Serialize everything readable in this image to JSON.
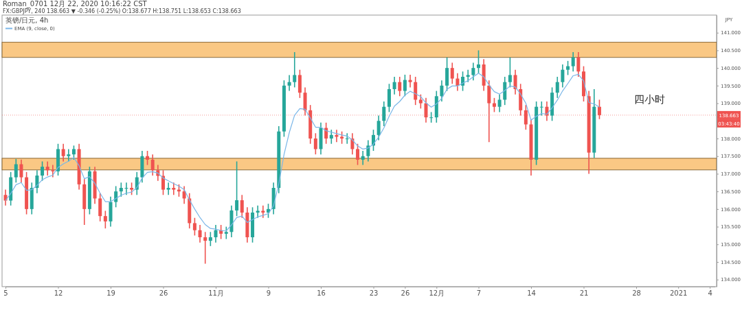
{
  "chart_data": {
    "type": "candlestick",
    "title": "Roman_0701 12月 22, 2020 10:16:22 CST",
    "subtitle": "FX:GBPJPY, 240 138.663 ▼ -0.346 (-0.25%) O:138.677 H:138.751 L:138.653 C:138.663",
    "legend_title": "英镑/日元, 4h",
    "legend": "top left",
    "ylabel": "JPY",
    "categories": [
      "5",
      null,
      null,
      null,
      null,
      null,
      null,
      null,
      null,
      null,
      "12",
      null,
      null,
      null,
      null,
      null,
      null,
      null,
      null,
      null,
      "19",
      null,
      null,
      null,
      null,
      null,
      null,
      null,
      null,
      null,
      "26",
      null,
      null,
      null,
      null,
      null,
      null,
      null,
      null,
      null,
      "11月",
      null,
      null,
      null,
      null,
      null,
      null,
      null,
      null,
      null,
      "9",
      null,
      null,
      null,
      null,
      null,
      null,
      null,
      null,
      null,
      "16",
      null,
      null,
      null,
      null,
      null,
      null,
      null,
      null,
      null,
      "23",
      null,
      null,
      null,
      null,
      null,
      "26",
      null,
      null,
      null,
      null,
      null,
      "12月",
      null,
      null,
      null,
      null,
      null,
      null,
      null,
      "7",
      null,
      null,
      null,
      null,
      null,
      null,
      null,
      null,
      null,
      "14",
      null,
      null,
      null,
      null,
      null,
      null,
      null,
      null,
      null,
      "21",
      null,
      null,
      null,
      null,
      null,
      null,
      null,
      null,
      null,
      "28",
      null,
      null,
      null,
      null,
      null,
      null,
      null,
      "2021",
      null,
      null,
      null,
      null,
      null,
      "4",
      null
    ],
    "ohlc": [
      [
        136.4,
        136.55,
        136.1,
        136.24
      ],
      [
        136.24,
        137.05,
        136.1,
        136.9
      ],
      [
        136.9,
        137.42,
        136.75,
        137.27
      ],
      [
        137.27,
        137.4,
        136.75,
        136.9
      ],
      [
        136.9,
        137.05,
        135.85,
        136.0
      ],
      [
        136.0,
        136.75,
        135.85,
        136.6
      ],
      [
        136.6,
        137.1,
        136.45,
        136.95
      ],
      [
        136.95,
        137.35,
        136.8,
        137.2
      ],
      [
        137.2,
        137.35,
        136.95,
        137.1
      ],
      [
        137.1,
        137.25,
        136.9,
        137.07
      ],
      [
        137.07,
        137.85,
        136.95,
        137.7
      ],
      [
        137.7,
        137.85,
        137.35,
        137.5
      ],
      [
        137.5,
        137.7,
        137.35,
        137.55
      ],
      [
        137.55,
        137.8,
        137.4,
        137.7
      ],
      [
        137.7,
        137.85,
        136.55,
        136.7
      ],
      [
        136.7,
        136.85,
        135.55,
        136.0
      ],
      [
        136.0,
        137.2,
        135.85,
        137.07
      ],
      [
        137.07,
        137.2,
        136.15,
        136.3
      ],
      [
        136.3,
        136.45,
        135.65,
        135.8
      ],
      [
        135.8,
        135.95,
        135.45,
        135.65
      ],
      [
        135.65,
        136.35,
        135.5,
        136.2
      ],
      [
        136.2,
        136.65,
        136.05,
        136.5
      ],
      [
        136.5,
        136.75,
        136.35,
        136.6
      ],
      [
        136.6,
        136.75,
        136.4,
        136.6
      ],
      [
        136.6,
        136.75,
        136.4,
        136.55
      ],
      [
        136.55,
        137.05,
        136.4,
        136.9
      ],
      [
        136.9,
        137.65,
        136.75,
        137.5
      ],
      [
        137.5,
        137.65,
        137.25,
        137.4
      ],
      [
        137.4,
        137.55,
        136.95,
        137.1
      ],
      [
        137.1,
        137.25,
        136.8,
        136.94
      ],
      [
        136.94,
        137.1,
        136.4,
        136.55
      ],
      [
        136.55,
        136.75,
        136.4,
        136.6
      ],
      [
        136.6,
        136.75,
        136.4,
        136.55
      ],
      [
        136.55,
        136.7,
        136.35,
        136.5
      ],
      [
        136.5,
        136.65,
        136.15,
        136.3
      ],
      [
        136.3,
        136.45,
        135.45,
        135.6
      ],
      [
        135.6,
        135.75,
        135.25,
        135.4
      ],
      [
        135.4,
        135.55,
        135.05,
        135.2
      ],
      [
        135.2,
        135.35,
        134.45,
        135.1
      ],
      [
        135.1,
        135.35,
        134.95,
        135.2
      ],
      [
        135.2,
        135.55,
        135.05,
        135.4
      ],
      [
        135.4,
        135.55,
        135.15,
        135.3
      ],
      [
        135.3,
        135.5,
        135.15,
        135.35
      ],
      [
        135.35,
        136.1,
        135.2,
        135.96
      ],
      [
        135.96,
        137.35,
        135.8,
        136.25
      ],
      [
        136.25,
        136.4,
        135.75,
        135.9
      ],
      [
        135.9,
        136.05,
        135.05,
        135.2
      ],
      [
        135.2,
        136.05,
        135.05,
        135.9
      ],
      [
        135.9,
        136.1,
        135.75,
        135.95
      ],
      [
        135.95,
        136.1,
        135.75,
        135.9
      ],
      [
        135.9,
        136.15,
        135.75,
        136.0
      ],
      [
        136.0,
        136.75,
        135.85,
        136.6
      ],
      [
        136.6,
        138.35,
        136.45,
        138.2
      ],
      [
        138.2,
        139.65,
        138.05,
        139.5
      ],
      [
        139.5,
        139.8,
        139.35,
        139.6
      ],
      [
        139.6,
        140.45,
        139.45,
        139.8
      ],
      [
        139.8,
        139.95,
        139.15,
        139.3
      ],
      [
        139.3,
        139.45,
        138.65,
        138.8
      ],
      [
        138.8,
        138.95,
        137.85,
        138.0
      ],
      [
        138.0,
        138.15,
        137.55,
        137.7
      ],
      [
        137.7,
        138.45,
        137.55,
        138.3
      ],
      [
        138.3,
        138.45,
        137.85,
        138.0
      ],
      [
        138.0,
        138.25,
        137.85,
        138.1
      ],
      [
        138.1,
        138.25,
        137.9,
        138.05
      ],
      [
        138.05,
        138.2,
        137.85,
        138.0
      ],
      [
        138.0,
        138.15,
        137.85,
        138.0
      ],
      [
        138.0,
        138.15,
        137.55,
        137.7
      ],
      [
        137.7,
        137.85,
        137.25,
        137.4
      ],
      [
        137.4,
        137.65,
        137.25,
        137.5
      ],
      [
        137.5,
        137.95,
        137.35,
        137.8
      ],
      [
        137.8,
        138.25,
        137.65,
        138.1
      ],
      [
        138.1,
        138.65,
        137.95,
        138.5
      ],
      [
        138.5,
        139.05,
        138.35,
        138.9
      ],
      [
        138.9,
        139.55,
        138.75,
        139.4
      ],
      [
        139.4,
        139.75,
        139.25,
        139.6
      ],
      [
        139.6,
        139.75,
        139.2,
        139.35
      ],
      [
        139.35,
        139.81,
        139.2,
        139.66
      ],
      [
        139.66,
        139.81,
        139.45,
        139.6
      ],
      [
        139.6,
        139.75,
        138.95,
        139.1
      ],
      [
        139.1,
        139.25,
        138.85,
        139.0
      ],
      [
        139.0,
        139.15,
        138.45,
        138.6
      ],
      [
        138.6,
        138.75,
        138.45,
        138.6
      ],
      [
        138.6,
        139.35,
        138.45,
        139.2
      ],
      [
        139.2,
        139.65,
        139.05,
        139.5
      ],
      [
        139.5,
        140.3,
        139.35,
        140.0
      ],
      [
        140.0,
        140.15,
        139.55,
        139.7
      ],
      [
        139.7,
        139.85,
        139.35,
        139.5
      ],
      [
        139.5,
        139.9,
        139.35,
        139.75
      ],
      [
        139.75,
        139.95,
        139.6,
        139.8
      ],
      [
        139.8,
        140.15,
        139.65,
        140.0
      ],
      [
        140.0,
        140.5,
        139.85,
        140.1
      ],
      [
        140.1,
        140.25,
        139.35,
        139.5
      ],
      [
        139.5,
        139.65,
        137.9,
        139.0
      ],
      [
        139.0,
        139.15,
        138.75,
        138.9
      ],
      [
        138.9,
        139.25,
        138.75,
        139.1
      ],
      [
        139.1,
        139.75,
        138.95,
        139.6
      ],
      [
        139.6,
        140.3,
        139.45,
        139.8
      ],
      [
        139.8,
        139.95,
        139.25,
        139.4
      ],
      [
        139.4,
        139.55,
        138.65,
        138.8
      ],
      [
        138.8,
        138.95,
        138.25,
        138.4
      ],
      [
        138.4,
        138.55,
        136.95,
        137.4
      ],
      [
        137.4,
        139.05,
        137.25,
        138.9
      ],
      [
        138.9,
        139.05,
        138.65,
        138.9
      ],
      [
        138.9,
        139.05,
        138.5,
        138.65
      ],
      [
        138.65,
        139.45,
        138.5,
        139.3
      ],
      [
        139.3,
        139.75,
        139.15,
        139.6
      ],
      [
        139.6,
        140.1,
        139.45,
        139.95
      ],
      [
        139.95,
        140.2,
        139.8,
        140.05
      ],
      [
        140.05,
        140.45,
        139.9,
        140.3
      ],
      [
        140.3,
        140.45,
        139.75,
        139.9
      ],
      [
        139.9,
        140.05,
        139.05,
        139.2
      ],
      [
        139.2,
        139.35,
        137.0,
        137.6
      ],
      [
        137.6,
        139.4,
        137.45,
        138.9
      ],
      [
        138.9,
        139.1,
        138.55,
        138.663
      ],
      null,
      null,
      null,
      null,
      null,
      null,
      null,
      null,
      null,
      null,
      null,
      null,
      null,
      null,
      null,
      null,
      null,
      null,
      null,
      null,
      null,
      null
    ],
    "series": [
      {
        "type": "line",
        "name": "EMA (9, close, 0)",
        "color": "#7ab6e8",
        "values": [
          136.24,
          136.44,
          136.69,
          136.75,
          136.53,
          136.55,
          136.67,
          136.83,
          136.91,
          136.96,
          137.18,
          137.28,
          137.36,
          137.46,
          137.23,
          136.86,
          136.92,
          136.73,
          136.45,
          136.21,
          136.21,
          136.3,
          136.39,
          136.45,
          136.48,
          136.61,
          136.88,
          137.04,
          137.06,
          137.02,
          136.88,
          136.8,
          136.72,
          136.65,
          136.55,
          136.26,
          136.0,
          135.76,
          135.56,
          135.45,
          135.43,
          135.39,
          135.38,
          135.55,
          135.76,
          135.8,
          135.62,
          135.7,
          135.78,
          135.82,
          135.87,
          136.09,
          136.72,
          137.55,
          138.17,
          138.66,
          138.85,
          138.83,
          138.58,
          138.32,
          138.32,
          138.22,
          138.18,
          138.14,
          138.1,
          138.07,
          137.96,
          137.79,
          137.7,
          137.73,
          137.84,
          138.04,
          138.3,
          138.63,
          138.92,
          139.05,
          139.23,
          139.34,
          139.27,
          139.19,
          139.01,
          138.89,
          138.98,
          139.14,
          139.4,
          139.49,
          139.49,
          139.57,
          139.64,
          139.75,
          139.85,
          139.75,
          139.52,
          139.33,
          139.26,
          139.36,
          139.49,
          139.46,
          139.26,
          139.0,
          138.52,
          138.63,
          138.71,
          138.69,
          138.87,
          139.09,
          139.35,
          139.56,
          139.78,
          139.82,
          139.63,
          139.02,
          138.98,
          138.89,
          null,
          null,
          null,
          null,
          null,
          null,
          null,
          null,
          null,
          null,
          null,
          null,
          null,
          null,
          null,
          null,
          null,
          null,
          null,
          null,
          null,
          null
        ]
      }
    ],
    "ylim": [
      133.8,
      141.5
    ],
    "yticks": [
      {
        "value": 134,
        "label": "134.000"
      },
      {
        "value": 134.5,
        "label": "134.500"
      },
      {
        "value": 135,
        "label": "135.000"
      },
      {
        "value": 135.5,
        "label": "135.500"
      },
      {
        "value": 136,
        "label": "136.000"
      },
      {
        "value": 136.5,
        "label": "136.500"
      },
      {
        "value": 137,
        "label": "137.000"
      },
      {
        "value": 137.5,
        "label": "137.500"
      },
      {
        "value": 138,
        "label": "138.000"
      },
      {
        "value": 138.5,
        "label": null
      },
      {
        "value": 139,
        "label": "139.000"
      },
      {
        "value": 139.5,
        "label": "139.500"
      },
      {
        "value": 140,
        "label": "140.000"
      },
      {
        "value": 140.5,
        "label": "140.500"
      },
      {
        "value": 141,
        "label": "141.000"
      }
    ],
    "bands": [
      {
        "axis": "y",
        "from": 140.3,
        "to": 140.73,
        "color": "#f9be6e"
      },
      {
        "axis": "y",
        "from": 137.11,
        "to": 137.44,
        "color": "#f9be6e"
      }
    ],
    "ref_lines": [
      {
        "axis": "y",
        "value": 138.663,
        "label": "138.663",
        "color": "#ef5350",
        "line_style": "dotted"
      }
    ],
    "annotations": [
      "03:43:40",
      "四小时"
    ]
  }
}
